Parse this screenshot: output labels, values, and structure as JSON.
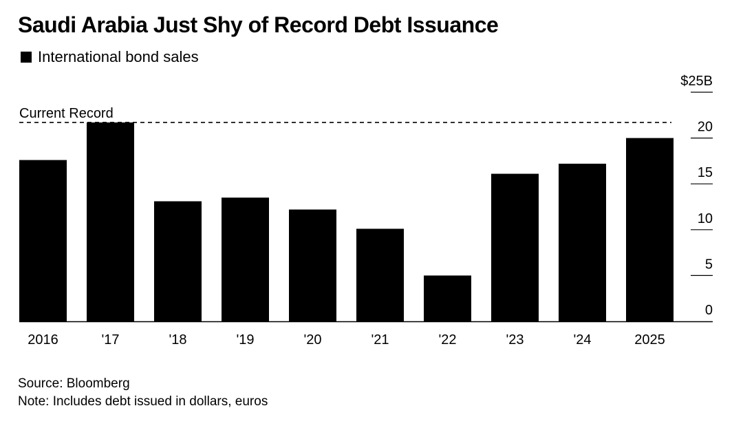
{
  "header": {
    "title": "Saudi Arabia Just Shy of Record Debt Issuance"
  },
  "legend": {
    "label": "International bond sales",
    "color": "#000000"
  },
  "footer": {
    "source": "Source: Bloomberg",
    "note": "Note: Includes debt issued in dollars, euros"
  },
  "chart_data": {
    "type": "bar",
    "categories": [
      "2016",
      "'17",
      "'18",
      "'19",
      "'20",
      "'21",
      "'22",
      "'23",
      "'24",
      "2025"
    ],
    "series": [
      {
        "name": "International bond sales",
        "values": [
          17.6,
          21.7,
          13.1,
          13.5,
          12.2,
          10.1,
          5.0,
          16.1,
          17.2,
          20.0
        ],
        "color": "#000000"
      }
    ],
    "ylim": [
      0,
      25
    ],
    "y_ticks": [
      0,
      5,
      10,
      15,
      20,
      25
    ],
    "y_tick_labels": [
      "0",
      "5",
      "10",
      "15",
      "20",
      "$25B"
    ],
    "reference_line": {
      "value": 21.7,
      "label": "Current Record",
      "style": "dashed"
    },
    "y_axis_position": "right",
    "grid": false
  }
}
